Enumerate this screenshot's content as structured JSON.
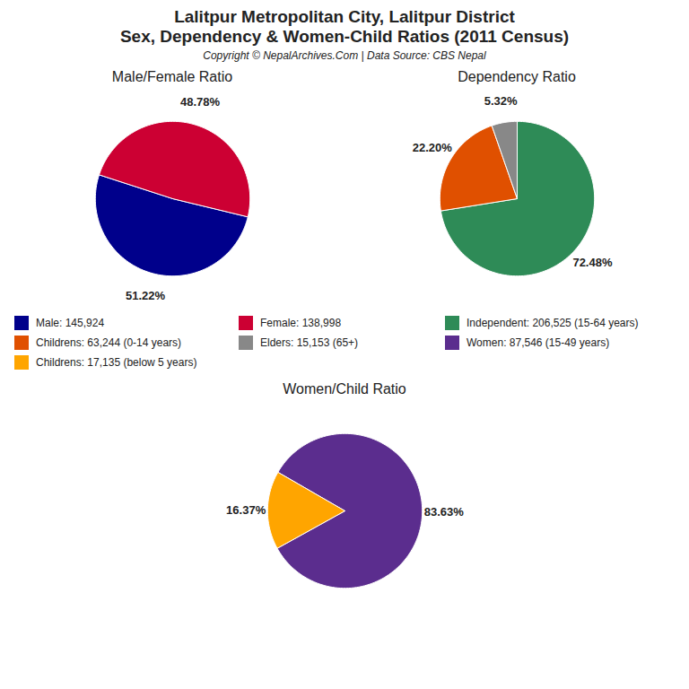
{
  "title": "Lalitpur Metropolitan City, Lalitpur District",
  "subtitle": "Sex, Dependency & Women-Child Ratios (2011 Census)",
  "caption": "Copyright © NepalArchives.Com | Data Source: CBS Nepal",
  "chart_data": [
    {
      "type": "pie",
      "title": "Male/Female Ratio",
      "categories": [
        "Male: 145,924",
        "Female: 138,998"
      ],
      "values": [
        51.22,
        48.78
      ],
      "value_labels": [
        "51.22%",
        "48.78%"
      ],
      "colors": [
        "#00008B",
        "#CC0033"
      ],
      "data_labels": true,
      "legend": "center"
    },
    {
      "type": "pie",
      "title": "Dependency Ratio",
      "categories": [
        "Independent: 206,525 (15-64 years)",
        "Childrens: 63,244 (0-14 years)",
        "Elders: 15,153 (65+)"
      ],
      "values": [
        72.48,
        22.2,
        5.32
      ],
      "value_labels": [
        "72.48%",
        "22.20%",
        "5.32%"
      ],
      "colors": [
        "#2E8B57",
        "#E05000",
        "#888888"
      ],
      "data_labels": true,
      "legend": "center"
    },
    {
      "type": "pie",
      "title": "Women/Child Ratio",
      "categories": [
        "Women: 87,546 (15-49 years)",
        "Childrens: 17,135 (below 5 years)"
      ],
      "values": [
        83.63,
        16.37
      ],
      "value_labels": [
        "83.63%",
        "16.37%"
      ],
      "colors": [
        "#5B2D8E",
        "#FFA500"
      ],
      "data_labels": true,
      "legend": "center"
    }
  ]
}
